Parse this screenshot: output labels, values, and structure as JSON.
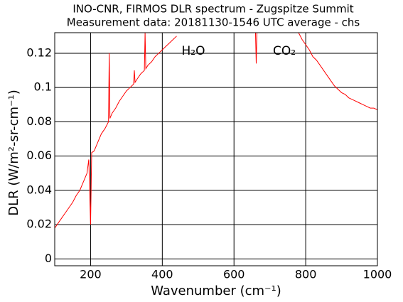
{
  "chart_data": {
    "type": "line",
    "title": "INO-CNR, FIRMOS DLR spectrum - Zugspitze Summit",
    "subtitle": "Measurement data: 20181130-1546 UTC average - chs",
    "x_label": "Wavenumber (cm⁻¹)",
    "y_label": "DLR (W/m²-sr-cm⁻¹)",
    "annotations": [
      "H₂O",
      "CO₂"
    ],
    "color": "#ff0000",
    "grid": true,
    "xlim": [
      100,
      1000
    ],
    "xticks": [
      200,
      400,
      600,
      800,
      1000
    ],
    "ylim": [
      -0.004,
      0.132
    ],
    "yticks": [
      0,
      0.02,
      0.04,
      0.06,
      0.08,
      0.1,
      0.12
    ],
    "x": [
      100,
      110,
      120,
      130,
      140,
      150,
      160,
      170,
      180,
      190,
      195,
      200,
      203,
      210,
      220,
      230,
      240,
      250,
      252,
      254,
      260,
      270,
      280,
      290,
      300,
      310,
      320,
      322,
      324,
      330,
      340,
      350,
      352,
      354,
      360,
      370,
      380,
      390,
      400,
      410,
      420,
      430,
      440,
      450,
      660,
      662,
      664,
      670,
      780,
      790,
      800,
      810,
      820,
      830,
      840,
      850,
      860,
      870,
      880,
      890,
      900,
      910,
      920,
      930,
      940,
      950,
      960,
      970,
      980,
      990,
      1000
    ],
    "values": [
      0.018,
      0.021,
      0.024,
      0.027,
      0.03,
      0.033,
      0.037,
      0.04,
      0.045,
      0.05,
      0.058,
      0.02,
      0.062,
      0.063,
      0.068,
      0.073,
      0.076,
      0.08,
      0.12,
      0.082,
      0.085,
      0.088,
      0.092,
      0.095,
      0.098,
      0.1,
      0.102,
      0.11,
      0.103,
      0.105,
      0.108,
      0.11,
      0.132,
      0.111,
      0.113,
      0.115,
      0.118,
      0.12,
      0.122,
      0.124,
      0.126,
      0.128,
      0.13,
      null,
      0.132,
      0.114,
      0.132,
      null,
      0.132,
      0.128,
      0.125,
      0.122,
      0.118,
      0.116,
      0.113,
      0.11,
      0.107,
      0.104,
      0.101,
      0.099,
      0.097,
      0.096,
      0.094,
      0.093,
      0.092,
      0.091,
      0.09,
      0.089,
      0.088,
      0.088,
      0.087
    ]
  }
}
